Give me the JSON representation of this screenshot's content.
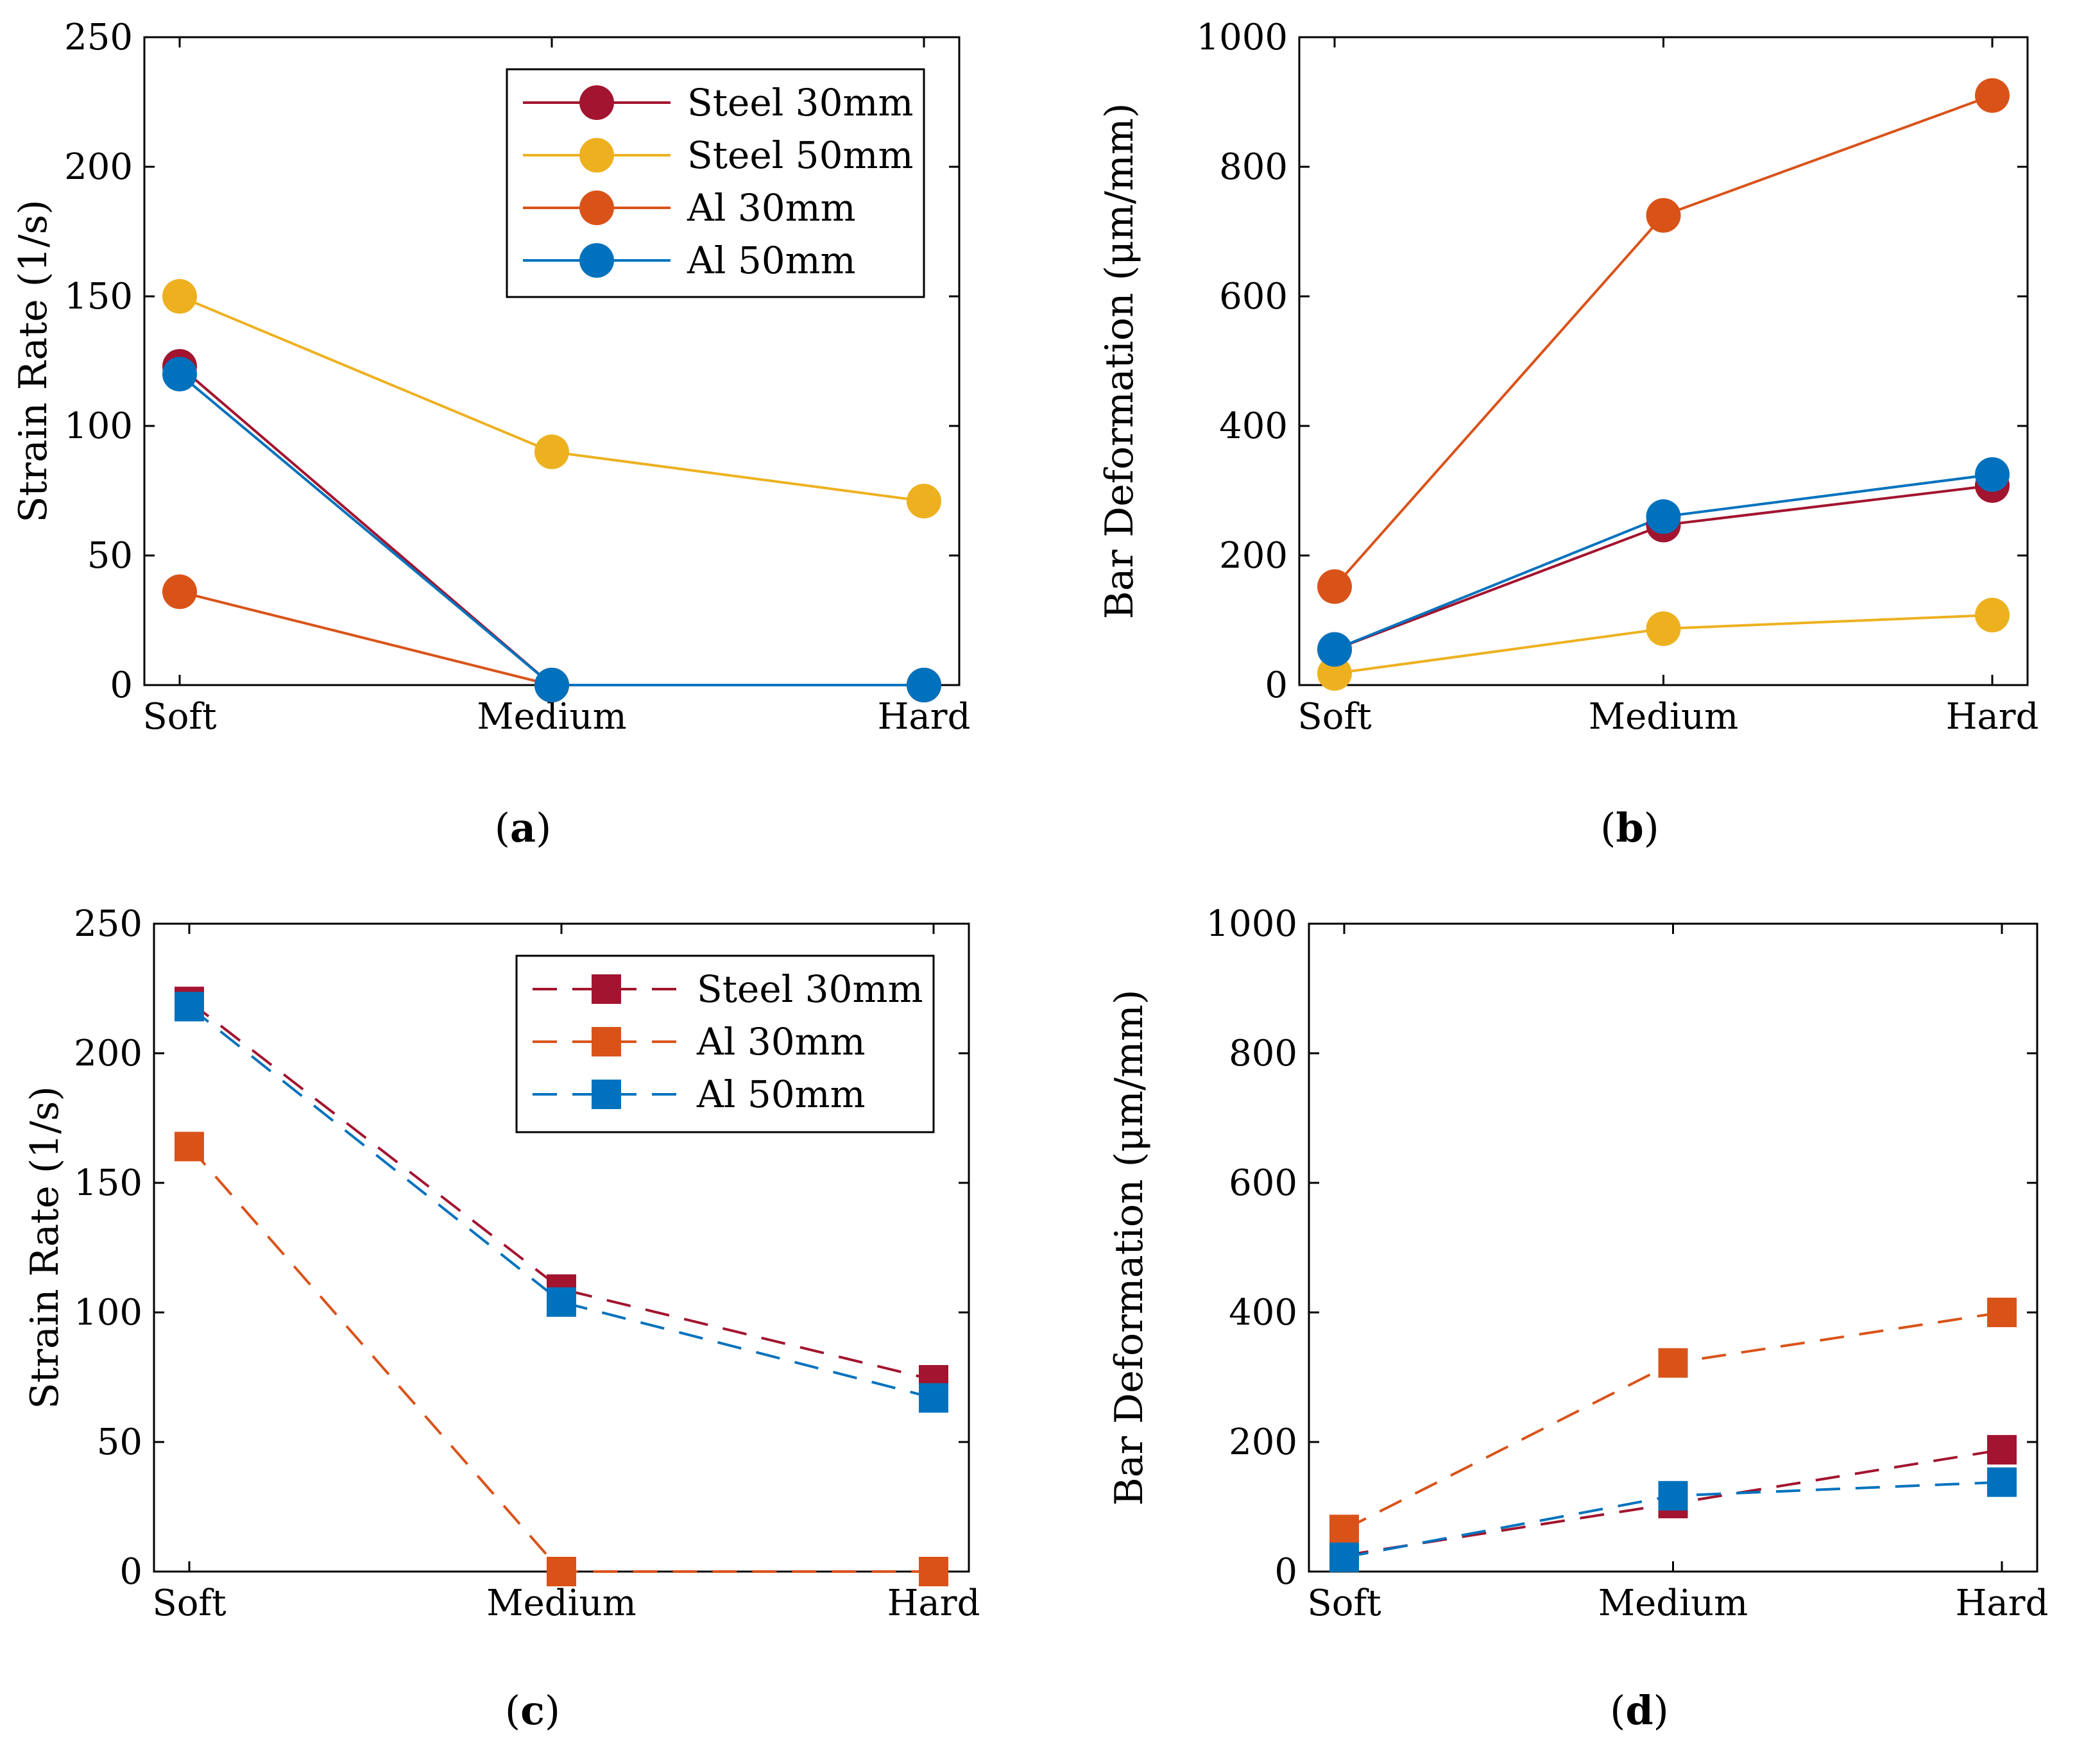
{
  "colors": {
    "steel_30mm": "#a2142f",
    "steel_50mm": "#edb120",
    "al_30mm": "#d95319",
    "al_50mm": "#0072bd",
    "axis": "#000000"
  },
  "chart_data": [
    {
      "id": "a",
      "type": "line",
      "marker": "circle",
      "line_style": "solid",
      "caption": "(a)",
      "caption_letter": "a",
      "xlabel": "",
      "ylabel": "Strain Rate (1/s)",
      "categories": [
        "Soft",
        "Medium",
        "Hard"
      ],
      "ylim": [
        0,
        250
      ],
      "yticks": [
        0,
        50,
        100,
        150,
        200,
        250
      ],
      "legend_position": "top-right",
      "series": [
        {
          "name": "Steel 30mm",
          "color": "#a2142f",
          "values": [
            123,
            0,
            0
          ]
        },
        {
          "name": "Steel 50mm",
          "color": "#edb120",
          "values": [
            150,
            90,
            71
          ]
        },
        {
          "name": "Al 30mm",
          "color": "#d95319",
          "values": [
            36,
            0,
            0
          ]
        },
        {
          "name": "Al 50mm",
          "color": "#0072bd",
          "values": [
            120,
            0,
            0
          ]
        }
      ]
    },
    {
      "id": "b",
      "type": "line",
      "marker": "circle",
      "line_style": "solid",
      "caption": "(b)",
      "caption_letter": "b",
      "xlabel": "",
      "ylabel": "Bar Deformation (μm/mm)",
      "categories": [
        "Soft",
        "Medium",
        "Hard"
      ],
      "ylim": [
        0,
        1000
      ],
      "yticks": [
        0,
        200,
        400,
        600,
        800,
        1000
      ],
      "legend_position": "none",
      "series": [
        {
          "name": "Steel 30mm",
          "color": "#a2142f",
          "values": [
            55,
            247,
            308
          ]
        },
        {
          "name": "Steel 50mm",
          "color": "#edb120",
          "values": [
            18,
            87,
            108
          ]
        },
        {
          "name": "Al 30mm",
          "color": "#d95319",
          "values": [
            152,
            725,
            910
          ]
        },
        {
          "name": "Al 50mm",
          "color": "#0072bd",
          "values": [
            55,
            260,
            325
          ]
        }
      ]
    },
    {
      "id": "c",
      "type": "line",
      "marker": "square",
      "line_style": "dashed",
      "caption": "(c)",
      "caption_letter": "c",
      "xlabel": "",
      "ylabel": "Strain Rate (1/s)",
      "categories": [
        "Soft",
        "Medium",
        "Hard"
      ],
      "ylim": [
        0,
        250
      ],
      "yticks": [
        0,
        50,
        100,
        150,
        200,
        250
      ],
      "legend_position": "top-right",
      "series": [
        {
          "name": "Steel 30mm",
          "color": "#a2142f",
          "values": [
            220,
            109,
            74
          ]
        },
        {
          "name": "Al 30mm",
          "color": "#d95319",
          "values": [
            164,
            0,
            0
          ]
        },
        {
          "name": "Al 50mm",
          "color": "#0072bd",
          "values": [
            218,
            104,
            67
          ]
        }
      ]
    },
    {
      "id": "d",
      "type": "line",
      "marker": "square",
      "line_style": "dashed",
      "caption": "(d)",
      "caption_letter": "d",
      "xlabel": "",
      "ylabel": "Bar Deformation (μm/mm)",
      "categories": [
        "Soft",
        "Medium",
        "Hard"
      ],
      "ylim": [
        0,
        1000
      ],
      "yticks": [
        0,
        200,
        400,
        600,
        800,
        1000
      ],
      "legend_position": "none",
      "series": [
        {
          "name": "Steel 30mm",
          "color": "#a2142f",
          "values": [
            25,
            105,
            188
          ]
        },
        {
          "name": "Al 30mm",
          "color": "#d95319",
          "values": [
            65,
            322,
            400
          ]
        },
        {
          "name": "Al 50mm",
          "color": "#0072bd",
          "values": [
            22,
            117,
            138
          ]
        }
      ]
    }
  ]
}
